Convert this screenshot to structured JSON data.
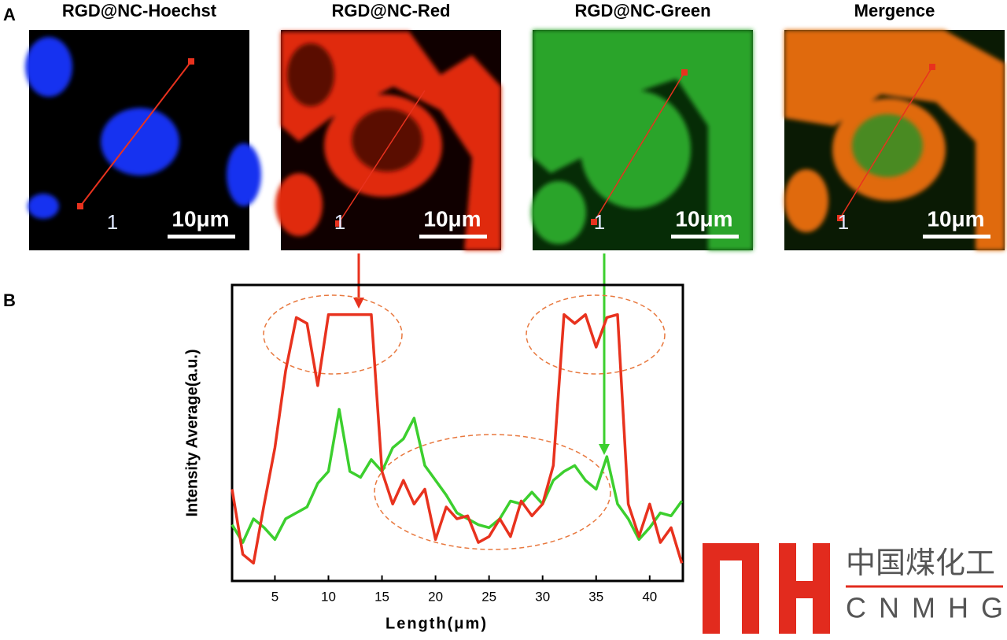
{
  "panel_labels": [
    "A",
    "B"
  ],
  "images": [
    {
      "title": "RGD@NC-Hoechst",
      "line_label": "1",
      "scale_bar": "10μm"
    },
    {
      "title": "RGD@NC-Red",
      "line_label": "1",
      "scale_bar": "10μm"
    },
    {
      "title": "RGD@NC-Green",
      "line_label": "1",
      "scale_bar": "10μm"
    },
    {
      "title": "Mergence",
      "line_label": "1",
      "scale_bar": "10μm"
    }
  ],
  "chart_data": {
    "type": "line",
    "x_label": "Length(μm)",
    "y_label": "Intensity Average(a.u.)",
    "x": [
      1,
      2,
      3,
      4,
      5,
      6,
      7,
      8,
      9,
      10,
      11,
      12,
      13,
      14,
      15,
      16,
      17,
      18,
      19,
      20,
      21,
      22,
      23,
      24,
      25,
      26,
      27,
      28,
      29,
      30,
      31,
      32,
      33,
      34,
      35,
      36,
      37,
      38,
      39,
      40,
      41,
      42,
      43
    ],
    "series": [
      {
        "color": "#e8321e",
        "values": [
          31,
          9,
          6,
          26,
          45,
          71,
          89,
          87,
          66,
          90,
          90,
          90,
          90,
          90,
          37,
          26,
          34,
          26,
          31,
          14,
          25,
          21,
          22,
          13,
          15,
          21,
          15,
          27,
          22,
          26,
          39,
          90,
          87,
          90,
          79,
          89,
          90,
          26,
          15,
          26,
          13,
          18,
          6
        ]
      },
      {
        "color": "#3ccf2e",
        "values": [
          19,
          13,
          21,
          18,
          14,
          21,
          23,
          25,
          33,
          37,
          58,
          37,
          35,
          41,
          37,
          45,
          48,
          55,
          39,
          34,
          29,
          23,
          21,
          19,
          18,
          21,
          27,
          26,
          30,
          26,
          34,
          37,
          39,
          34,
          31,
          42,
          26,
          21,
          14,
          18,
          23,
          22,
          27
        ]
      }
    ],
    "xlim": [
      1,
      43.1
    ],
    "xticks": [
      5,
      10,
      15,
      20,
      25,
      30,
      35,
      40
    ],
    "ylim": [
      0,
      100
    ]
  },
  "logo": {
    "chinese": "中国煤化工",
    "latin": "CNMHG"
  }
}
